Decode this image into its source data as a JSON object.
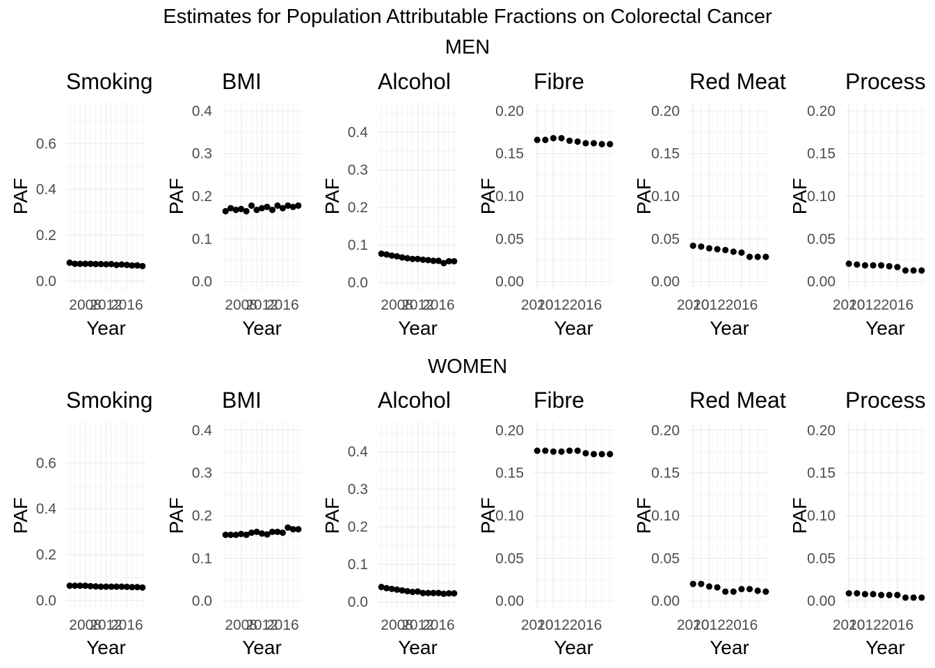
{
  "figure": {
    "title": "Estimates for Population Attributable Fractions on Colorectal Cancer",
    "sections": [
      "MEN",
      "WOMEN"
    ]
  },
  "chart_data": [
    {
      "type": "scatter",
      "section": "MEN",
      "title": "Smoking",
      "xlabel": "Year",
      "ylabel": "PAF",
      "grid": true,
      "x": [
        2005,
        2006,
        2007,
        2008,
        2009,
        2010,
        2011,
        2012,
        2013,
        2014,
        2015,
        2016,
        2017,
        2018,
        2019
      ],
      "xticks": [
        2008,
        2012,
        2016
      ],
      "ylim": [
        -0.04,
        0.78
      ],
      "yticks": [
        0.0,
        0.2,
        0.4,
        0.6
      ],
      "ytick_labels": [
        "0.0",
        "0.2",
        "0.4",
        "0.6"
      ],
      "values": [
        0.08,
        0.075,
        0.075,
        0.075,
        0.075,
        0.074,
        0.074,
        0.073,
        0.074,
        0.07,
        0.072,
        0.07,
        0.068,
        0.068,
        0.065
      ]
    },
    {
      "type": "scatter",
      "section": "MEN",
      "title": "BMI",
      "xlabel": "Year",
      "ylabel": "PAF",
      "grid": true,
      "x": [
        2005,
        2006,
        2007,
        2008,
        2009,
        2010,
        2011,
        2012,
        2013,
        2014,
        2015,
        2016,
        2017,
        2018,
        2019
      ],
      "xticks": [
        2008,
        2012,
        2016
      ],
      "ylim": [
        -0.02,
        0.42
      ],
      "yticks": [
        0.0,
        0.1,
        0.2,
        0.3,
        0.4
      ],
      "ytick_labels": [
        "0.0",
        "0.1",
        "0.2",
        "0.3",
        "0.4"
      ],
      "values": [
        0.165,
        0.172,
        0.168,
        0.17,
        0.165,
        0.178,
        0.168,
        0.172,
        0.175,
        0.168,
        0.178,
        0.172,
        0.178,
        0.175,
        0.178
      ]
    },
    {
      "type": "scatter",
      "section": "MEN",
      "title": "Alcohol",
      "xlabel": "Year",
      "ylabel": "PAF",
      "grid": true,
      "x": [
        2005,
        2006,
        2007,
        2008,
        2009,
        2010,
        2011,
        2012,
        2013,
        2014,
        2015,
        2016,
        2017,
        2018,
        2019
      ],
      "xticks": [
        2008,
        2012,
        2016
      ],
      "ylim": [
        -0.02,
        0.48
      ],
      "yticks": [
        0.0,
        0.1,
        0.2,
        0.3,
        0.4
      ],
      "ytick_labels": [
        "0.0",
        "0.1",
        "0.2",
        "0.3",
        "0.4"
      ],
      "values": [
        0.077,
        0.075,
        0.072,
        0.07,
        0.067,
        0.065,
        0.063,
        0.063,
        0.061,
        0.06,
        0.058,
        0.058,
        0.052,
        0.057,
        0.057
      ]
    },
    {
      "type": "scatter",
      "section": "MEN",
      "title": "Fibre",
      "xlabel": "Year",
      "ylabel": "PAF",
      "grid": true,
      "x": [
        2010,
        2011,
        2012,
        2013,
        2014,
        2015,
        2016,
        2017,
        2018,
        2019
      ],
      "xticks": [
        2010,
        2012,
        2016
      ],
      "ylim": [
        -0.01,
        0.21
      ],
      "yticks": [
        0.0,
        0.05,
        0.1,
        0.15,
        0.2
      ],
      "ytick_labels": [
        "0.00",
        "0.05",
        "0.10",
        "0.15",
        "0.20"
      ],
      "values": [
        0.166,
        0.166,
        0.168,
        0.168,
        0.165,
        0.164,
        0.162,
        0.162,
        0.161,
        0.161
      ]
    },
    {
      "type": "scatter",
      "section": "MEN",
      "title": "Red Meat",
      "xlabel": "Year",
      "ylabel": "PAF",
      "grid": true,
      "x": [
        2010,
        2011,
        2012,
        2013,
        2014,
        2015,
        2016,
        2017,
        2018,
        2019
      ],
      "xticks": [
        2010,
        2012,
        2016
      ],
      "ylim": [
        -0.01,
        0.21
      ],
      "yticks": [
        0.0,
        0.05,
        0.1,
        0.15,
        0.2
      ],
      "ytick_labels": [
        "0.00",
        "0.05",
        "0.10",
        "0.15",
        "0.20"
      ],
      "values": [
        0.042,
        0.041,
        0.039,
        0.038,
        0.037,
        0.035,
        0.034,
        0.029,
        0.029,
        0.029
      ]
    },
    {
      "type": "scatter",
      "section": "MEN",
      "title": "Process",
      "xlabel": "Year",
      "ylabel": "PAF",
      "grid": true,
      "x": [
        2010,
        2011,
        2012,
        2013,
        2014,
        2015,
        2016,
        2017,
        2018,
        2019
      ],
      "xticks": [
        2010,
        2012,
        2016
      ],
      "ylim": [
        -0.01,
        0.21
      ],
      "yticks": [
        0.0,
        0.05,
        0.1,
        0.15,
        0.2
      ],
      "ytick_labels": [
        "0.00",
        "0.05",
        "0.10",
        "0.15",
        "0.20"
      ],
      "values": [
        0.021,
        0.02,
        0.019,
        0.019,
        0.019,
        0.018,
        0.017,
        0.013,
        0.013,
        0.013
      ]
    },
    {
      "type": "scatter",
      "section": "WOMEN",
      "title": "Smoking",
      "xlabel": "Year",
      "ylabel": "PAF",
      "grid": true,
      "x": [
        2005,
        2006,
        2007,
        2008,
        2009,
        2010,
        2011,
        2012,
        2013,
        2014,
        2015,
        2016,
        2017,
        2018,
        2019
      ],
      "xticks": [
        2008,
        2012,
        2016
      ],
      "ylim": [
        -0.04,
        0.78
      ],
      "yticks": [
        0.0,
        0.2,
        0.4,
        0.6
      ],
      "ytick_labels": [
        "0.0",
        "0.2",
        "0.4",
        "0.6"
      ],
      "values": [
        0.064,
        0.064,
        0.064,
        0.064,
        0.062,
        0.061,
        0.06,
        0.06,
        0.06,
        0.06,
        0.06,
        0.059,
        0.058,
        0.058,
        0.056
      ]
    },
    {
      "type": "scatter",
      "section": "WOMEN",
      "title": "BMI",
      "xlabel": "Year",
      "ylabel": "PAF",
      "grid": true,
      "x": [
        2005,
        2006,
        2007,
        2008,
        2009,
        2010,
        2011,
        2012,
        2013,
        2014,
        2015,
        2016,
        2017,
        2018,
        2019
      ],
      "xticks": [
        2008,
        2012,
        2016
      ],
      "ylim": [
        -0.02,
        0.42
      ],
      "yticks": [
        0.0,
        0.1,
        0.2,
        0.3,
        0.4
      ],
      "ytick_labels": [
        "0.0",
        "0.1",
        "0.2",
        "0.3",
        "0.4"
      ],
      "values": [
        0.155,
        0.155,
        0.155,
        0.157,
        0.155,
        0.16,
        0.162,
        0.158,
        0.156,
        0.162,
        0.162,
        0.16,
        0.172,
        0.168,
        0.168
      ]
    },
    {
      "type": "scatter",
      "section": "WOMEN",
      "title": "Alcohol",
      "xlabel": "Year",
      "ylabel": "PAF",
      "grid": true,
      "x": [
        2005,
        2006,
        2007,
        2008,
        2009,
        2010,
        2011,
        2012,
        2013,
        2014,
        2015,
        2016,
        2017,
        2018,
        2019
      ],
      "xticks": [
        2008,
        2012,
        2016
      ],
      "ylim": [
        -0.02,
        0.48
      ],
      "yticks": [
        0.0,
        0.1,
        0.2,
        0.3,
        0.4
      ],
      "ytick_labels": [
        "0.0",
        "0.1",
        "0.2",
        "0.3",
        "0.4"
      ],
      "values": [
        0.04,
        0.037,
        0.035,
        0.033,
        0.031,
        0.029,
        0.027,
        0.028,
        0.024,
        0.024,
        0.024,
        0.024,
        0.022,
        0.023,
        0.023
      ]
    },
    {
      "type": "scatter",
      "section": "WOMEN",
      "title": "Fibre",
      "xlabel": "Year",
      "ylabel": "PAF",
      "grid": true,
      "x": [
        2010,
        2011,
        2012,
        2013,
        2014,
        2015,
        2016,
        2017,
        2018,
        2019
      ],
      "xticks": [
        2010,
        2012,
        2016
      ],
      "ylim": [
        -0.01,
        0.21
      ],
      "yticks": [
        0.0,
        0.05,
        0.1,
        0.15,
        0.2
      ],
      "ytick_labels": [
        "0.00",
        "0.05",
        "0.10",
        "0.15",
        "0.20"
      ],
      "values": [
        0.176,
        0.176,
        0.175,
        0.175,
        0.176,
        0.176,
        0.173,
        0.172,
        0.172,
        0.172
      ]
    },
    {
      "type": "scatter",
      "section": "WOMEN",
      "title": "Red Meat",
      "xlabel": "Year",
      "ylabel": "PAF",
      "grid": true,
      "x": [
        2010,
        2011,
        2012,
        2013,
        2014,
        2015,
        2016,
        2017,
        2018,
        2019
      ],
      "xticks": [
        2010,
        2012,
        2016
      ],
      "ylim": [
        -0.01,
        0.21
      ],
      "yticks": [
        0.0,
        0.05,
        0.1,
        0.15,
        0.2
      ],
      "ytick_labels": [
        "0.00",
        "0.05",
        "0.10",
        "0.15",
        "0.20"
      ],
      "values": [
        0.02,
        0.02,
        0.017,
        0.016,
        0.011,
        0.011,
        0.014,
        0.014,
        0.012,
        0.011
      ]
    },
    {
      "type": "scatter",
      "section": "WOMEN",
      "title": "Process",
      "xlabel": "Year",
      "ylabel": "PAF",
      "grid": true,
      "x": [
        2010,
        2011,
        2012,
        2013,
        2014,
        2015,
        2016,
        2017,
        2018,
        2019
      ],
      "xticks": [
        2010,
        2012,
        2016
      ],
      "ylim": [
        -0.01,
        0.21
      ],
      "yticks": [
        0.0,
        0.05,
        0.1,
        0.15,
        0.2
      ],
      "ytick_labels": [
        "0.00",
        "0.05",
        "0.10",
        "0.15",
        "0.20"
      ],
      "values": [
        0.009,
        0.009,
        0.008,
        0.008,
        0.007,
        0.007,
        0.007,
        0.004,
        0.004,
        0.004
      ]
    }
  ]
}
